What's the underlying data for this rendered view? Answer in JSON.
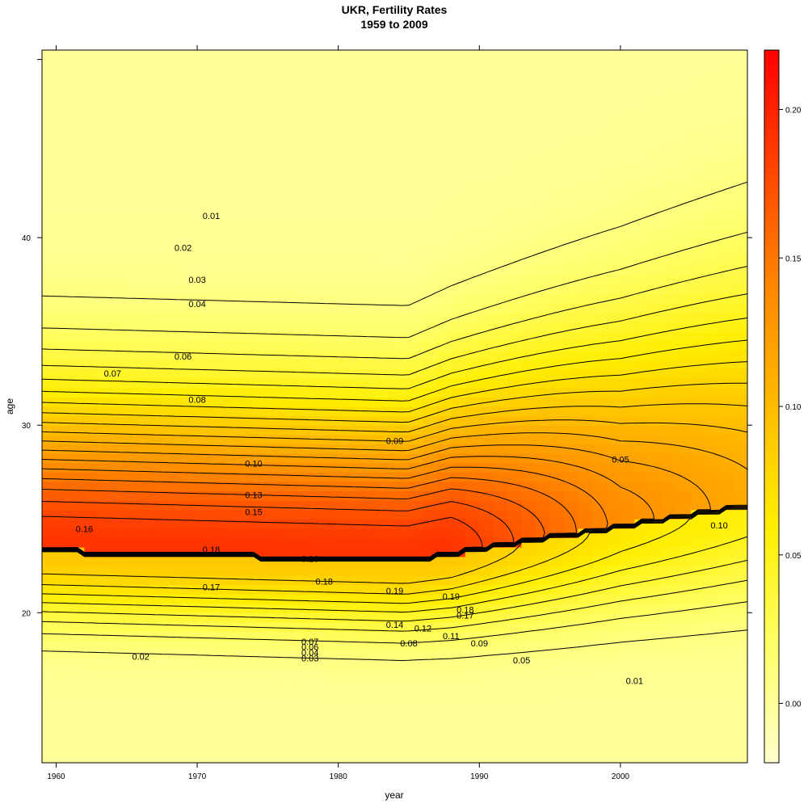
{
  "chart_data": {
    "type": "heatmap",
    "title": "UKR, Fertility Rates",
    "subtitle": "1959 to 2009",
    "xlabel": "year",
    "ylabel": "age",
    "xlim": [
      1959,
      2009
    ],
    "ylim": [
      12,
      50
    ],
    "x_ticks": [
      "1960",
      "1970",
      "1980",
      "1990",
      "2000"
    ],
    "y_ticks": [
      "20",
      "30",
      "40"
    ],
    "colorbar": {
      "range": [
        -0.02,
        0.22
      ],
      "ticks": [
        "0.00",
        "0.05",
        "0.10",
        "0.15",
        "0.20"
      ],
      "colors": [
        "#ffffcc",
        "#ffff66",
        "#ffee00",
        "#ffbb00",
        "#ff8800",
        "#ff4400",
        "#ff0000"
      ]
    },
    "contour_levels": [
      0.01,
      0.02,
      0.03,
      0.04,
      0.05,
      0.06,
      0.07,
      0.08,
      0.09,
      0.1,
      0.11,
      0.12,
      0.13,
      0.14,
      0.15,
      0.16,
      0.17,
      0.18,
      0.19
    ],
    "contour_labels": [
      {
        "text": "0.01",
        "x": 1971,
        "y": 41.0
      },
      {
        "text": "0.02",
        "x": 1969,
        "y": 39.3
      },
      {
        "text": "0.03",
        "x": 1970,
        "y": 37.6
      },
      {
        "text": "0.04",
        "x": 1970,
        "y": 36.3
      },
      {
        "text": "0.06",
        "x": 1969,
        "y": 33.5
      },
      {
        "text": "0.07",
        "x": 1964,
        "y": 32.6
      },
      {
        "text": "0.08",
        "x": 1970,
        "y": 31.2
      },
      {
        "text": "0.09",
        "x": 1984,
        "y": 29.0
      },
      {
        "text": "0.10",
        "x": 1974,
        "y": 27.8
      },
      {
        "text": "0.13",
        "x": 1974,
        "y": 26.1
      },
      {
        "text": "0.15",
        "x": 1974,
        "y": 25.2
      },
      {
        "text": "0.16",
        "x": 1962,
        "y": 24.3
      },
      {
        "text": "0.18",
        "x": 1971,
        "y": 23.2
      },
      {
        "text": "0.16",
        "x": 1978,
        "y": 22.7
      },
      {
        "text": "0.17",
        "x": 1971,
        "y": 21.2
      },
      {
        "text": "0.18",
        "x": 1979,
        "y": 21.5
      },
      {
        "text": "0.19",
        "x": 1984,
        "y": 21.0
      },
      {
        "text": "0.19",
        "x": 1988,
        "y": 20.7
      },
      {
        "text": "0.18",
        "x": 1989,
        "y": 20.0
      },
      {
        "text": "0.17",
        "x": 1989,
        "y": 19.7
      },
      {
        "text": "0.14",
        "x": 1984,
        "y": 19.2
      },
      {
        "text": "0.12",
        "x": 1986,
        "y": 19.0
      },
      {
        "text": "0.11",
        "x": 1988,
        "y": 18.6
      },
      {
        "text": "0.08",
        "x": 1985,
        "y": 18.2
      },
      {
        "text": "0.09",
        "x": 1990,
        "y": 18.2
      },
      {
        "text": "0.07",
        "x": 1978,
        "y": 18.3
      },
      {
        "text": "0.06",
        "x": 1978,
        "y": 18.0
      },
      {
        "text": "0.04",
        "x": 1978,
        "y": 17.7
      },
      {
        "text": "0.03",
        "x": 1978,
        "y": 17.4
      },
      {
        "text": "0.02",
        "x": 1966,
        "y": 17.5
      },
      {
        "text": "0.05",
        "x": 1993,
        "y": 17.3
      },
      {
        "text": "0.01",
        "x": 2001,
        "y": 16.2
      },
      {
        "text": "0.05",
        "x": 2000,
        "y": 28.0
      },
      {
        "text": "0.10",
        "x": 2007,
        "y": 24.5
      }
    ]
  }
}
